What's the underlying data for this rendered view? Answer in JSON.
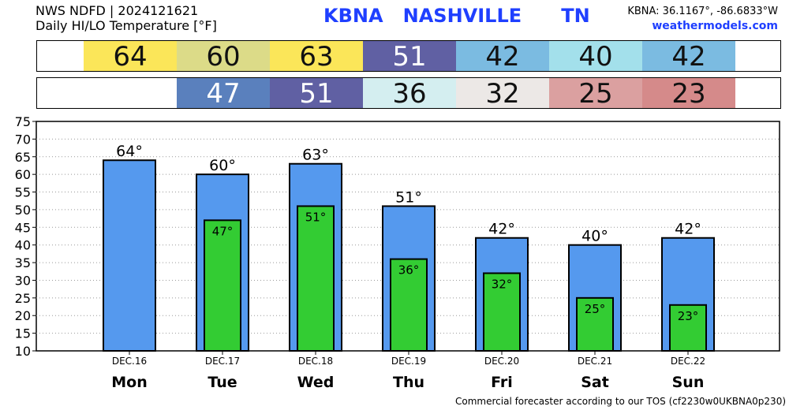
{
  "header": {
    "source_line": "NWS NDFD | 2024121621",
    "product_line": "Daily HI/LO Temperature [°F]",
    "station_id": "KBNA",
    "station_name": "NASHVILLE",
    "state": "TN",
    "coords": "KBNA: 36.1167°, -86.6833°W",
    "site": "weathermodels.com"
  },
  "strip_hi": [
    {
      "value": "64",
      "color": "#fbe659",
      "light": false
    },
    {
      "value": "60",
      "color": "#dcdb88",
      "light": false
    },
    {
      "value": "63",
      "color": "#fbe659",
      "light": false
    },
    {
      "value": "51",
      "color": "#6060a3",
      "light": true
    },
    {
      "value": "42",
      "color": "#7bbbe1",
      "light": false
    },
    {
      "value": "40",
      "color": "#a3e0eb",
      "light": false
    },
    {
      "value": "42",
      "color": "#7bbbe1",
      "light": false
    }
  ],
  "strip_lo": [
    {
      "value": "",
      "color": "#ffffff",
      "light": false
    },
    {
      "value": "47",
      "color": "#5a80bd",
      "light": true
    },
    {
      "value": "51",
      "color": "#6060a3",
      "light": true
    },
    {
      "value": "36",
      "color": "#d4eef0",
      "light": false
    },
    {
      "value": "32",
      "color": "#ece8e6",
      "light": false
    },
    {
      "value": "25",
      "color": "#dba0a0",
      "light": false
    },
    {
      "value": "23",
      "color": "#d58a8a",
      "light": false
    }
  ],
  "chart_data": {
    "type": "bar",
    "categories": [
      "Mon",
      "Tue",
      "Wed",
      "Thu",
      "Fri",
      "Sat",
      "Sun"
    ],
    "dates": [
      "DEC.16",
      "DEC.17",
      "DEC.18",
      "DEC.19",
      "DEC.20",
      "DEC.21",
      "DEC.22"
    ],
    "series": [
      {
        "values": [
          64,
          60,
          63,
          51,
          42,
          40,
          42
        ],
        "color": "#5599ee"
      },
      {
        "values": [
          null,
          47,
          51,
          36,
          32,
          25,
          23
        ],
        "color": "#33cc33"
      }
    ],
    "hi_labels": [
      "64°",
      "60°",
      "63°",
      "51°",
      "42°",
      "40°",
      "42°"
    ],
    "lo_labels": [
      "",
      "47°",
      "51°",
      "36°",
      "32°",
      "25°",
      "23°"
    ],
    "ylim": [
      10,
      75
    ],
    "yticks": [
      "75",
      "70",
      "65",
      "60",
      "55",
      "50",
      "45",
      "40",
      "35",
      "30",
      "25",
      "20",
      "15",
      "10"
    ],
    "grid": true
  },
  "footer": "Commercial forecaster according to our TOS (cf2230w0UKBNA0p230)"
}
